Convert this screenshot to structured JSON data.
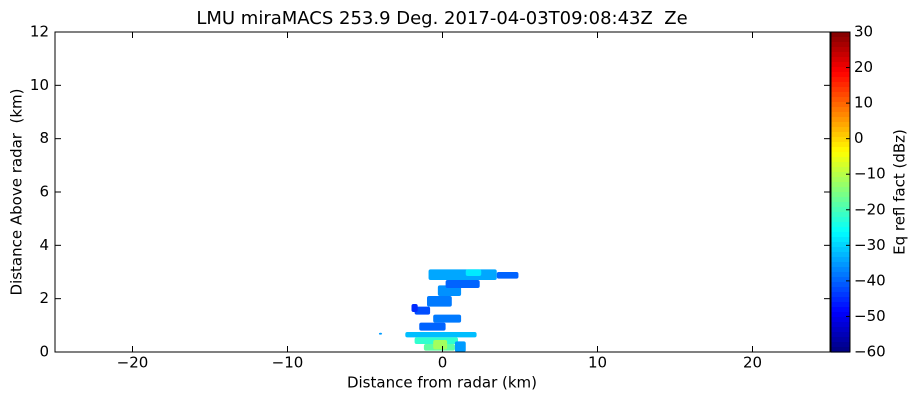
{
  "chart_data": {
    "type": "rhi",
    "title": "LMU miraMACS 253.9 Deg. 2017-04-03T09:08:43Z  Ze",
    "x_label": "Distance from radar (km)",
    "y_label": "Distance Above radar  (km)",
    "colorbar_label": "Eq refl fact (dBz)",
    "colormap": "jet",
    "xlim": [
      -25,
      25
    ],
    "xticks": [
      {
        "value": -20,
        "label": "−20"
      },
      {
        "value": -10,
        "label": "−10"
      },
      0,
      10,
      20
    ],
    "ylim": [
      0,
      12
    ],
    "yticks": [
      0,
      2,
      4,
      6,
      8,
      10,
      12
    ],
    "clim": [
      -60,
      30
    ],
    "cticks": [
      {
        "value": -60,
        "label": "−60"
      },
      {
        "value": -50,
        "label": "−50"
      },
      {
        "value": -40,
        "label": "−40"
      },
      {
        "value": -30,
        "label": "−30"
      },
      {
        "value": -20,
        "label": "−20"
      },
      {
        "value": -10,
        "label": "−10"
      },
      0,
      10,
      20,
      30
    ],
    "cells": [
      {
        "x": [
          -2.4,
          2.2
        ],
        "y": [
          0.55,
          0.75
        ],
        "value": -32
      },
      {
        "x": [
          -1.8,
          1.0
        ],
        "y": [
          0.3,
          0.55
        ],
        "value": -22
      },
      {
        "x": [
          -1.2,
          0.8
        ],
        "y": [
          0.05,
          0.3
        ],
        "value": -18
      },
      {
        "x": [
          -0.6,
          0.3
        ],
        "y": [
          0.1,
          0.45
        ],
        "value": -12
      },
      {
        "x": [
          0.8,
          1.5
        ],
        "y": [
          0,
          0.4
        ],
        "value": -35
      },
      {
        "x": [
          -4.1,
          -3.9
        ],
        "y": [
          0.65,
          0.72
        ],
        "value": -35
      },
      {
        "x": [
          -1.5,
          0.2
        ],
        "y": [
          0.8,
          1.1
        ],
        "value": -40
      },
      {
        "x": [
          -0.6,
          1.2
        ],
        "y": [
          1.1,
          1.4
        ],
        "value": -38
      },
      {
        "x": [
          -1.8,
          -0.8
        ],
        "y": [
          1.4,
          1.7
        ],
        "value": -42
      },
      {
        "x": [
          -2.0,
          -1.6
        ],
        "y": [
          1.5,
          1.8
        ],
        "value": -45
      },
      {
        "x": [
          -1.0,
          0.6
        ],
        "y": [
          1.7,
          2.1
        ],
        "value": -38
      },
      {
        "x": [
          -0.3,
          1.2
        ],
        "y": [
          2.1,
          2.5
        ],
        "value": -36
      },
      {
        "x": [
          0.2,
          2.4
        ],
        "y": [
          2.4,
          2.7
        ],
        "value": -40
      },
      {
        "x": [
          -0.9,
          3.5
        ],
        "y": [
          2.7,
          3.1
        ],
        "value": -34
      },
      {
        "x": [
          1.5,
          2.5
        ],
        "y": [
          2.85,
          3.1
        ],
        "value": -28
      },
      {
        "x": [
          3.5,
          4.9
        ],
        "y": [
          2.75,
          3.0
        ],
        "value": -40
      }
    ]
  }
}
